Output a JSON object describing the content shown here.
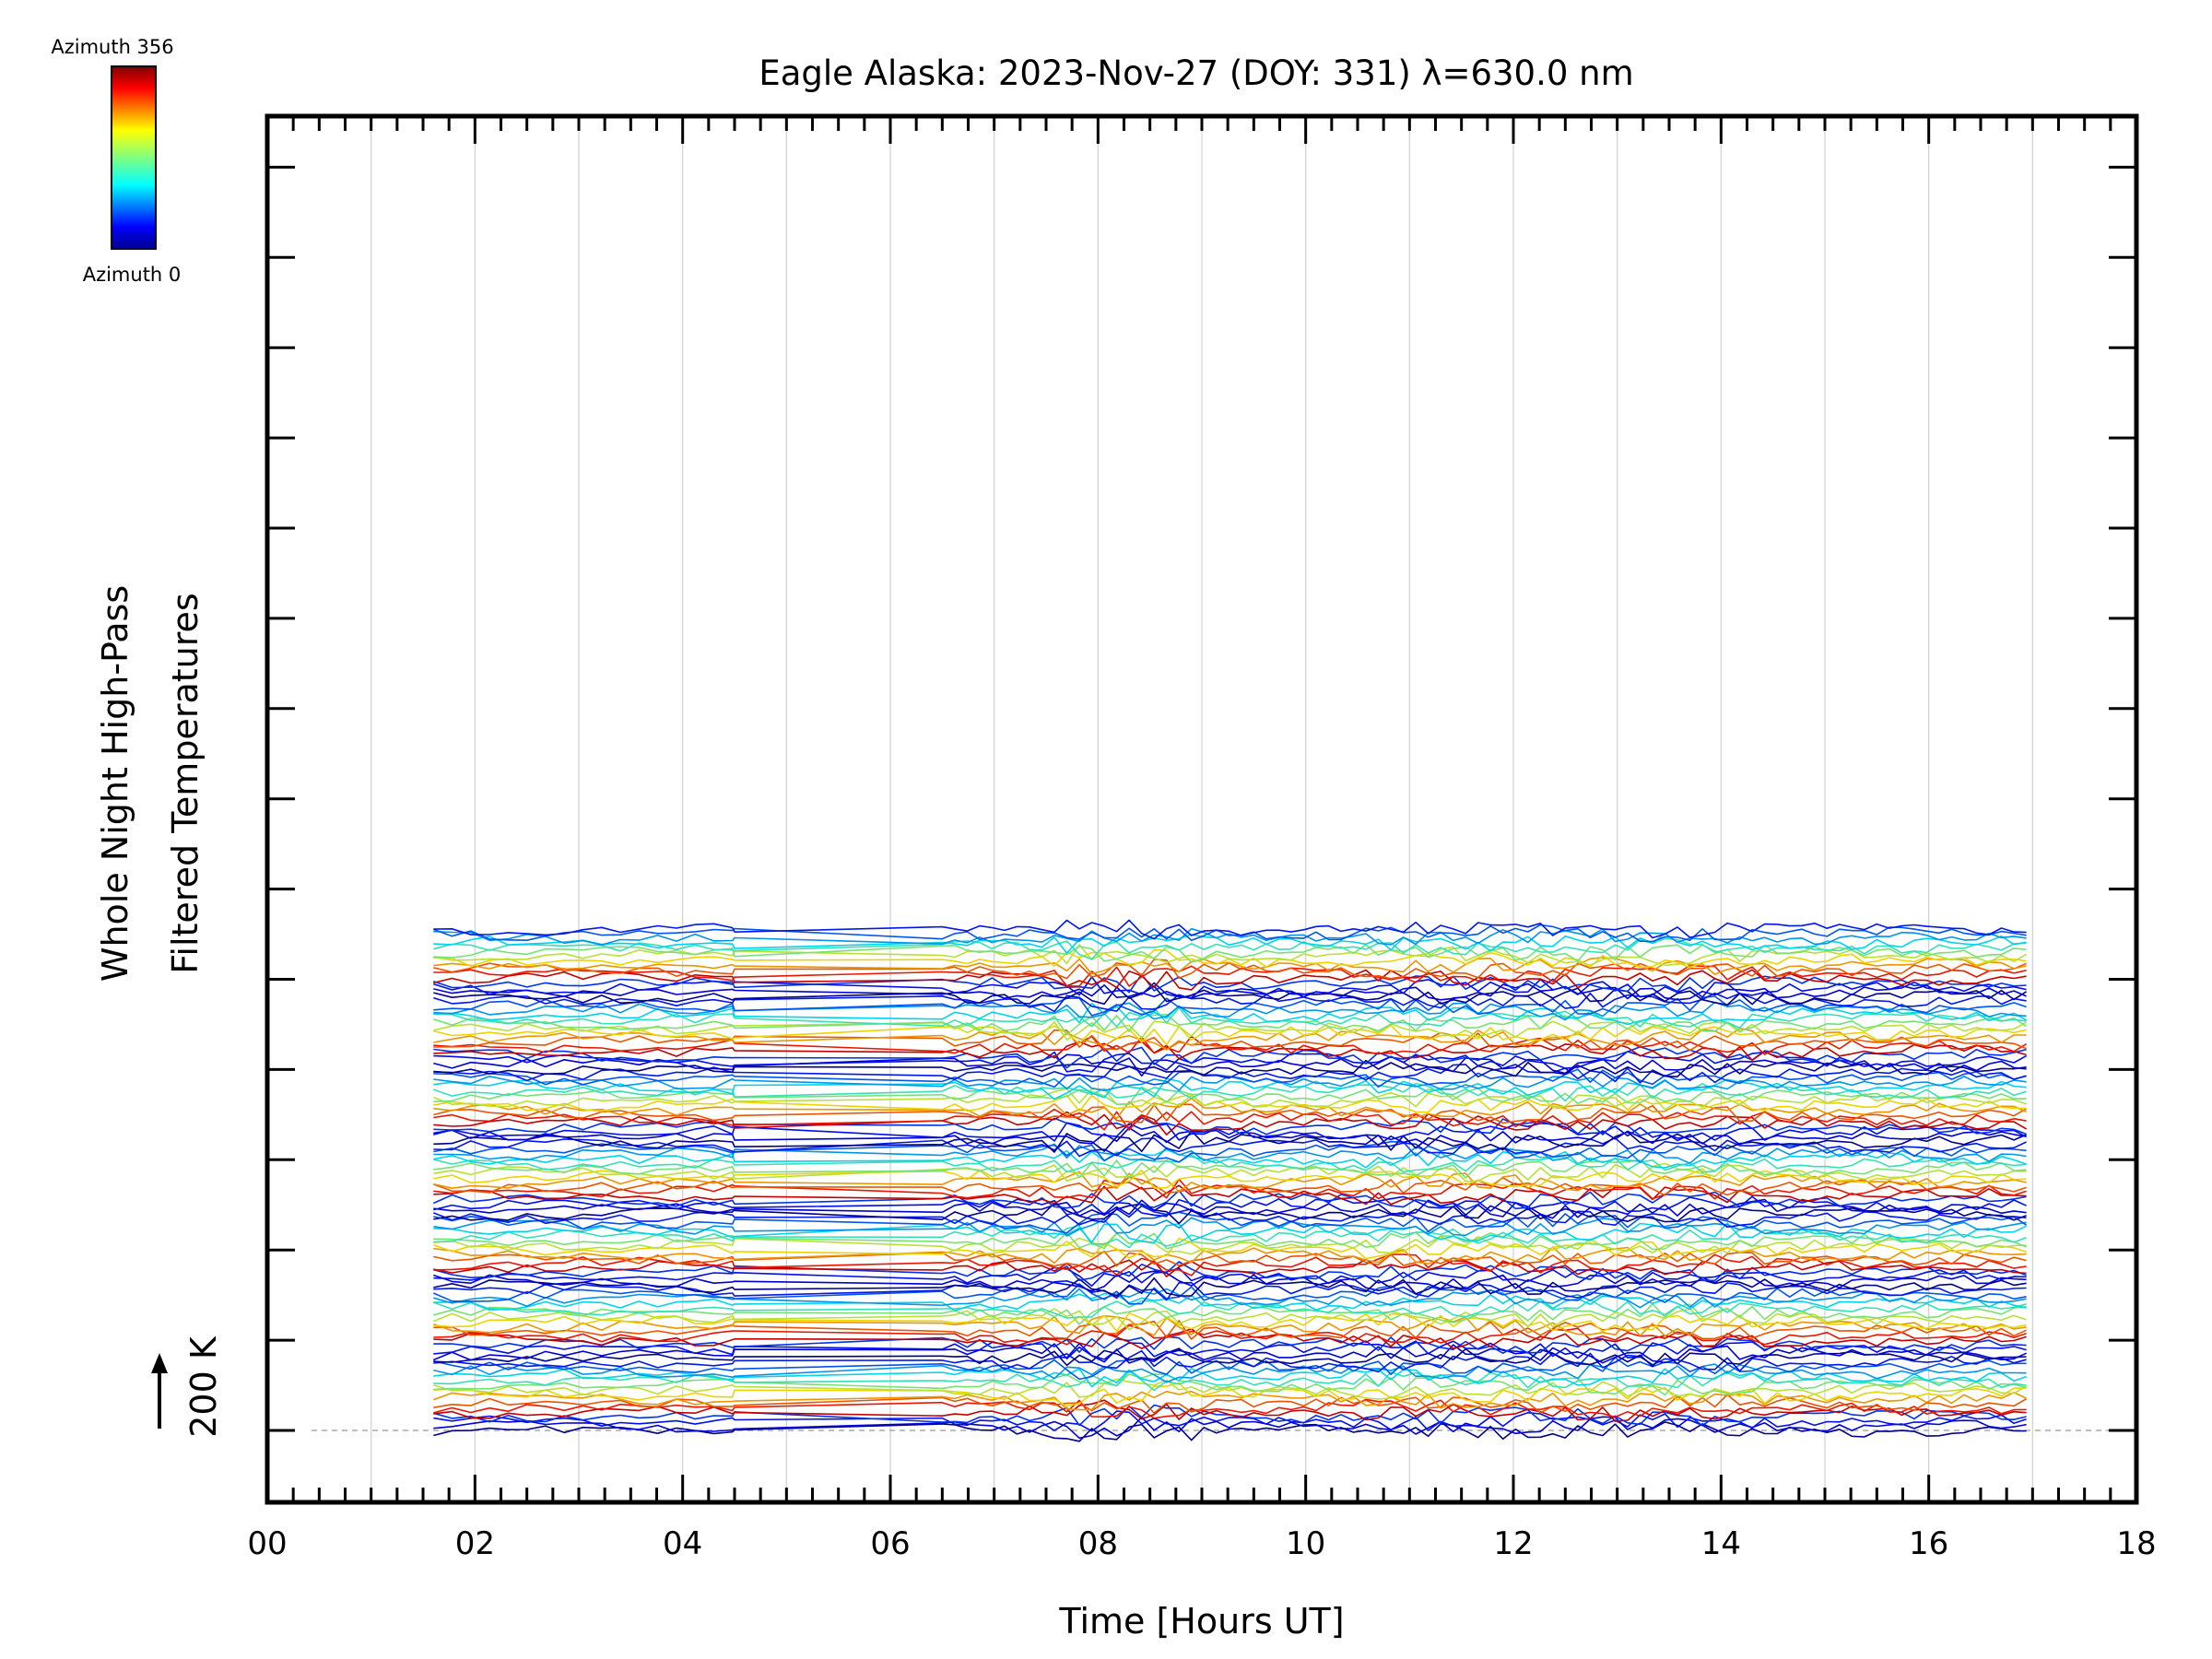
{
  "chart_data": {
    "type": "line",
    "title": "Eagle Alaska: 2023-Nov-27 (DOY: 331) λ=630.0 nm",
    "xlabel": "Time [Hours UT]",
    "ylabel_line1": "Whole Night High-Pass",
    "ylabel_line2": "Filtered Temperatures",
    "xlim": [
      0,
      18
    ],
    "x_ticks": [
      "00",
      "02",
      "04",
      "06",
      "08",
      "10",
      "12",
      "14",
      "16",
      "18"
    ],
    "y_scale_label": "200 K",
    "y_scale_value_K": 200,
    "colorbar": {
      "max_label": "Azimuth 356",
      "min_label": "Azimuth 0",
      "min": 0,
      "max": 356
    },
    "data_start_hour": 1.6,
    "data_end_hour": 16.95,
    "gap_start_hour": 4.5,
    "gap_end_hour": 6.5,
    "num_traces": 112,
    "trace_spacing_K": 14
  },
  "colors": {
    "background": "#ffffff",
    "axis": "#000000",
    "gridline": "#d0d0d0",
    "baseline": "#aaaaaa"
  }
}
